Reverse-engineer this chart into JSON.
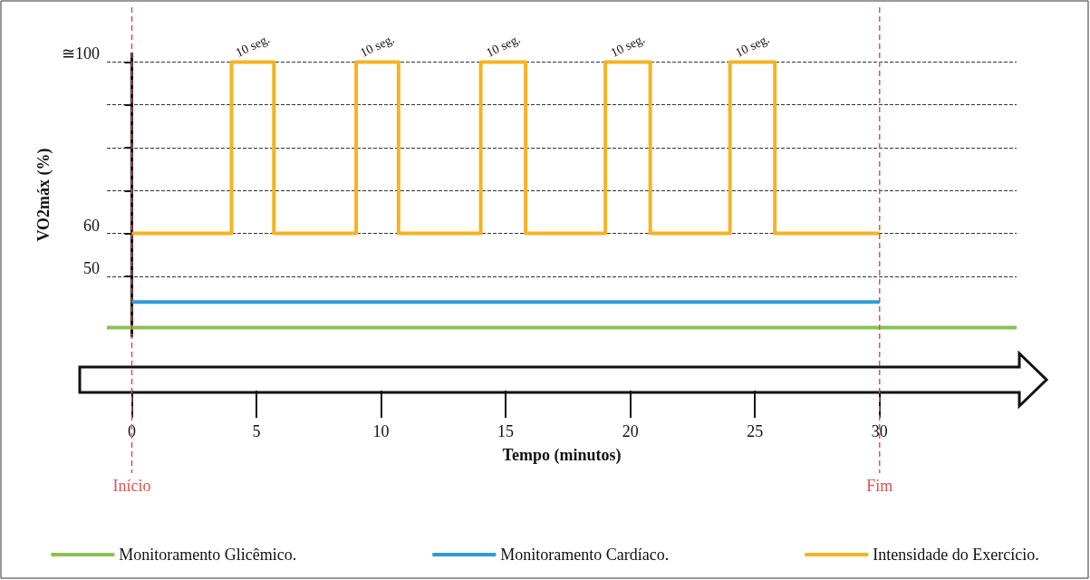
{
  "chart_data": {
    "type": "line",
    "xlabel": "Tempo (minutos)",
    "ylabel": "VO2máx (%)",
    "xlim": [
      -1,
      35.5
    ],
    "xticks": [
      0,
      5,
      10,
      15,
      20,
      25,
      30
    ],
    "ylim": [
      36,
      102
    ],
    "yticks": [
      50,
      60,
      {
        "value": 70,
        "label": null
      },
      {
        "value": 80,
        "label": null
      },
      {
        "value": 90,
        "label": null
      },
      {
        "value": 100,
        "label": "≅100"
      }
    ],
    "grid": "y",
    "legend": "bottom",
    "marker": "none",
    "series": [
      {
        "name": "Monitoramento Glicêmico.",
        "color": "#8cc152",
        "x": [
          -1,
          35.5
        ],
        "values": [
          38,
          38
        ]
      },
      {
        "name": "Monitoramento Cardíaco.",
        "color": "#2e9bd6",
        "x": [
          0,
          30
        ],
        "values": [
          44,
          44
        ]
      },
      {
        "name": "Intensidade do Exercício.",
        "color": "#f5b324",
        "type": "step",
        "x": [
          0,
          4,
          5.7,
          9,
          10.7,
          14,
          15.8,
          19,
          20.8,
          24,
          25.8,
          30
        ],
        "values": [
          60,
          100,
          60,
          100,
          60,
          100,
          60,
          100,
          60,
          100,
          60,
          60
        ]
      }
    ],
    "ref_lines": [
      {
        "axis": "x",
        "value": 0,
        "label": "Início",
        "color": "#d9534f",
        "line_style": "dashed"
      },
      {
        "axis": "x",
        "value": 30,
        "label": "Fim",
        "color": "#d9534f",
        "line_style": "dashed"
      }
    ],
    "annotations": [
      {
        "text": "10 seg.",
        "x": 4.85,
        "y": 100
      },
      {
        "text": "10 seg.",
        "x": 9.85,
        "y": 100
      },
      {
        "text": "10 seg.",
        "x": 14.9,
        "y": 100
      },
      {
        "text": "10 seg.",
        "x": 19.9,
        "y": 100
      },
      {
        "text": "10 seg.",
        "x": 24.9,
        "y": 100
      }
    ]
  }
}
